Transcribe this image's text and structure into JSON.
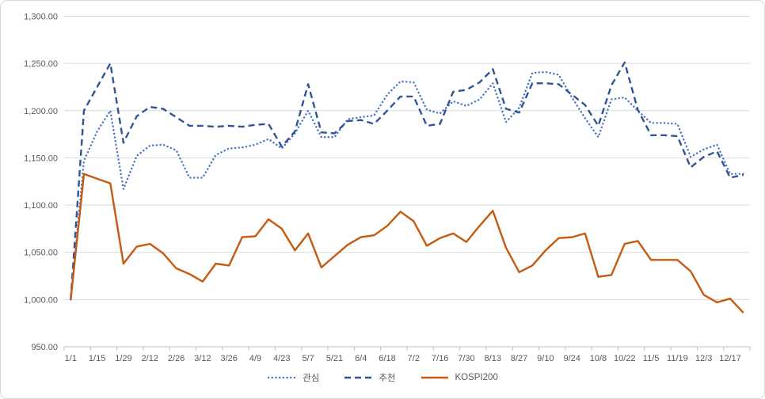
{
  "chart_data": {
    "type": "line",
    "title": "",
    "xlabel": "",
    "ylabel": "",
    "ylim": [
      950,
      1300
    ],
    "grid": true,
    "grid_color": "#D9D9D9",
    "axis_text_color": "#595959",
    "legend_position": "bottom",
    "x_tick_labels": [
      "1/1",
      "1/15",
      "1/29",
      "2/12",
      "2/26",
      "3/12",
      "3/26",
      "4/9",
      "4/23",
      "5/7",
      "5/21",
      "6/4",
      "6/18",
      "7/2",
      "7/16",
      "7/30",
      "8/13",
      "8/27",
      "9/10",
      "9/24",
      "10/8",
      "10/22",
      "11/5",
      "11/19",
      "12/3",
      "12/17"
    ],
    "x_note": "weekly data points, axis labels shown every 2nd point",
    "y_axis": {
      "ticks": [
        {
          "value": 950,
          "label": "950.00"
        },
        {
          "value": 1000,
          "label": "1,000.00"
        },
        {
          "value": 1050,
          "label": "1,050.00"
        },
        {
          "value": 1100,
          "label": "1,100.00"
        },
        {
          "value": 1150,
          "label": "1,150.00"
        },
        {
          "value": 1200,
          "label": "1,200.00"
        },
        {
          "value": 1250,
          "label": "1,250.00"
        },
        {
          "value": 1300,
          "label": "1,300.00"
        }
      ]
    },
    "series": [
      {
        "name": "관심",
        "style": "dotted",
        "color": "#4472C4",
        "values": [
          1000,
          1147,
          1178,
          1200,
          1117,
          1152,
          1163,
          1164,
          1158,
          1129,
          1129,
          1153,
          1160,
          1161,
          1164,
          1170,
          1160,
          1176,
          1200,
          1172,
          1172,
          1191,
          1193,
          1195,
          1217,
          1231,
          1230,
          1201,
          1197,
          1210,
          1205,
          1212,
          1229,
          1188,
          1203,
          1240,
          1241,
          1238,
          1214,
          1192,
          1172,
          1212,
          1214,
          1200,
          1187,
          1187,
          1186,
          1151,
          1159,
          1164,
          1133,
          1133
        ]
      },
      {
        "name": "추천",
        "style": "dashed",
        "color": "#2F5597",
        "values": [
          1000,
          1200,
          1225,
          1250,
          1166,
          1194,
          1204,
          1202,
          1193,
          1184,
          1184,
          1183,
          1184,
          1183,
          1185,
          1186,
          1162,
          1178,
          1228,
          1177,
          1176,
          1189,
          1190,
          1186,
          1200,
          1215,
          1215,
          1184,
          1186,
          1220,
          1222,
          1230,
          1244,
          1202,
          1198,
          1229,
          1229,
          1228,
          1217,
          1206,
          1184,
          1227,
          1251,
          1201,
          1174,
          1174,
          1173,
          1140,
          1151,
          1157,
          1129,
          1132
        ]
      },
      {
        "name": "KOSPI200",
        "style": "solid",
        "color": "#C55A11",
        "values": [
          1000,
          1133,
          1128,
          1123,
          1038,
          1056,
          1059,
          1049,
          1033,
          1027,
          1019,
          1038,
          1036,
          1066,
          1067,
          1085,
          1075,
          1052,
          1070,
          1034,
          1046,
          1058,
          1066,
          1068,
          1078,
          1093,
          1083,
          1057,
          1065,
          1070,
          1061,
          1078,
          1094,
          1055,
          1029,
          1036,
          1052,
          1065,
          1066,
          1070,
          1024,
          1026,
          1059,
          1062,
          1042,
          1042,
          1042,
          1030,
          1005,
          997,
          1001,
          986
        ]
      }
    ]
  }
}
